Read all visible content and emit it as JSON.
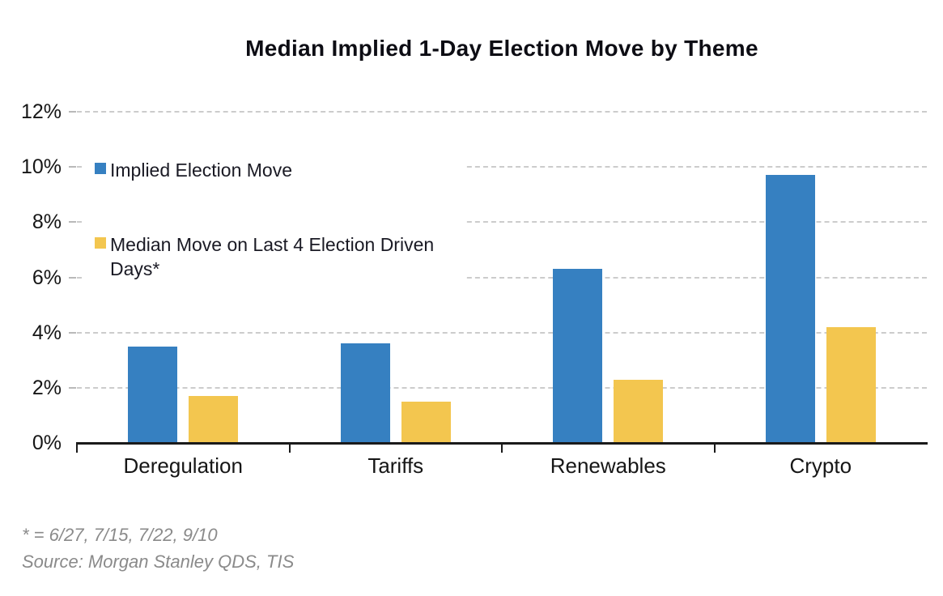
{
  "chart_data": {
    "type": "bar",
    "title": "Median Implied 1-Day Election Move by Theme",
    "categories": [
      "Deregulation",
      "Tariffs",
      "Renewables",
      "Crypto"
    ],
    "series": [
      {
        "name": "Implied Election Move",
        "color": "#3680C1",
        "values": [
          3.5,
          3.6,
          6.3,
          9.7
        ]
      },
      {
        "name": "Median Move on Last 4 Election Driven Days*",
        "color": "#F3C64F",
        "values": [
          1.7,
          1.5,
          2.3,
          4.2
        ]
      }
    ],
    "xlabel": "",
    "ylabel": "",
    "ylim": [
      0,
      12
    ],
    "ytick_step": 2,
    "ytick_labels": [
      "0%",
      "2%",
      "4%",
      "6%",
      "8%",
      "10%",
      "12%"
    ],
    "grid": "dashed-horizontal",
    "legend_position": "inside-top-left"
  },
  "footnotes": {
    "asterisk": "* = 6/27, 7/15, 7/22, 9/10",
    "source": "Source: Morgan Stanley QDS, TIS"
  },
  "colors": {
    "series_implied": "#3680C1",
    "series_median_move": "#F3C64F",
    "gridline": "#CCCCCC",
    "axis": "#1A1A1A",
    "label_text": "#161616",
    "title_text": "#0D0D14",
    "footnote_text": "#8A8A8A",
    "background": "#FFFFFF"
  }
}
